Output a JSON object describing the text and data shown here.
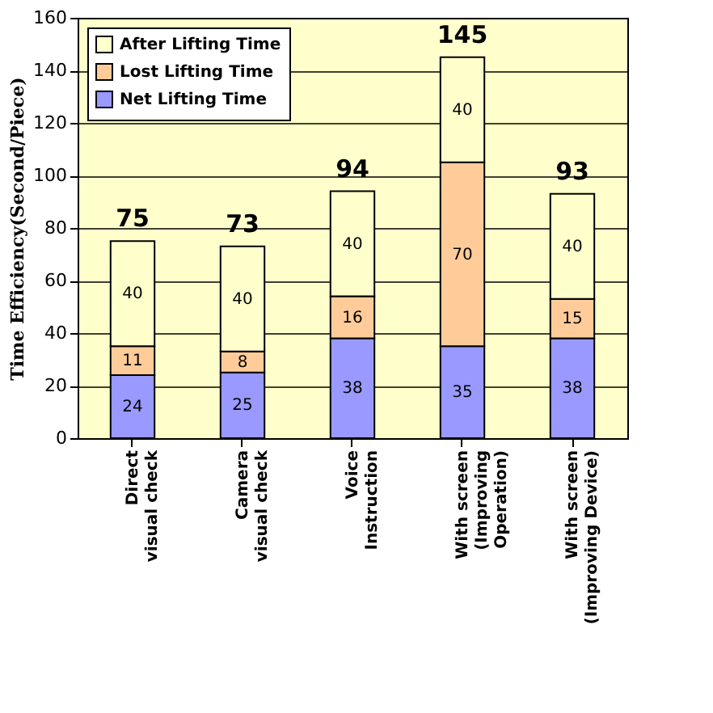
{
  "chart_data": {
    "type": "bar",
    "stacked": true,
    "ylabel": "Time Efficiency(Second/Piece)",
    "categories": [
      "Direct\nvisual check",
      "Camera\nvisual check",
      "Voice\nInstruction",
      "With screen\n(Improving\nOperation)",
      "With screen\n(Improving Device)"
    ],
    "series": [
      {
        "name": "Net Lifting Time",
        "color": "#9999ff",
        "values": [
          24,
          25,
          38,
          35,
          38
        ]
      },
      {
        "name": "Lost Lifting Time",
        "color": "#ffcc99",
        "values": [
          11,
          8,
          16,
          70,
          15
        ]
      },
      {
        "name": "After Lifting Time",
        "color": "#ffffcc",
        "values": [
          40,
          40,
          40,
          40,
          40
        ]
      }
    ],
    "totals": [
      "75",
      "73",
      "94",
      "145",
      "93"
    ],
    "data_labels": true,
    "ylim": [
      0,
      160
    ],
    "yticks": [
      0,
      20,
      40,
      60,
      80,
      100,
      120,
      140,
      160
    ],
    "grid": "y",
    "legend": "top left"
  }
}
